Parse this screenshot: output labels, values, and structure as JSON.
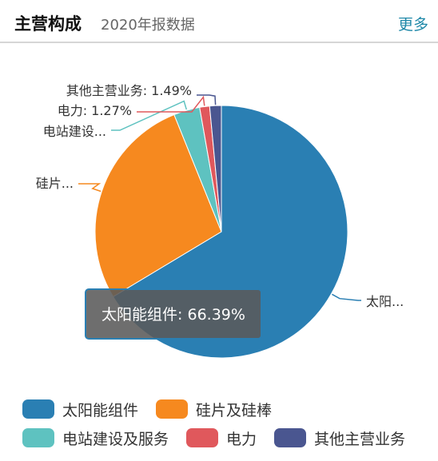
{
  "header": {
    "title": "主营构成",
    "subtitle": "2020年报数据",
    "more": "更多"
  },
  "chart_data": {
    "type": "pie",
    "slices": [
      {
        "name": "太阳能组件",
        "value": 66.39,
        "label": "太阳...",
        "color": "#2a7fb3"
      },
      {
        "name": "硅片及硅棒",
        "value": 27.5,
        "label": "硅片...",
        "color": "#f6891f"
      },
      {
        "name": "电站建设及服务",
        "value": 3.35,
        "label": "电站建设...",
        "color": "#5ec2c0"
      },
      {
        "name": "电力",
        "value": 1.27,
        "label": "电力: 1.27%",
        "color": "#e0585c"
      },
      {
        "name": "其他主营业务",
        "value": 1.49,
        "label": "其他主营业务: 1.49%",
        "color": "#4a5690"
      }
    ],
    "tooltip": "太阳能组件: 66.39%"
  }
}
